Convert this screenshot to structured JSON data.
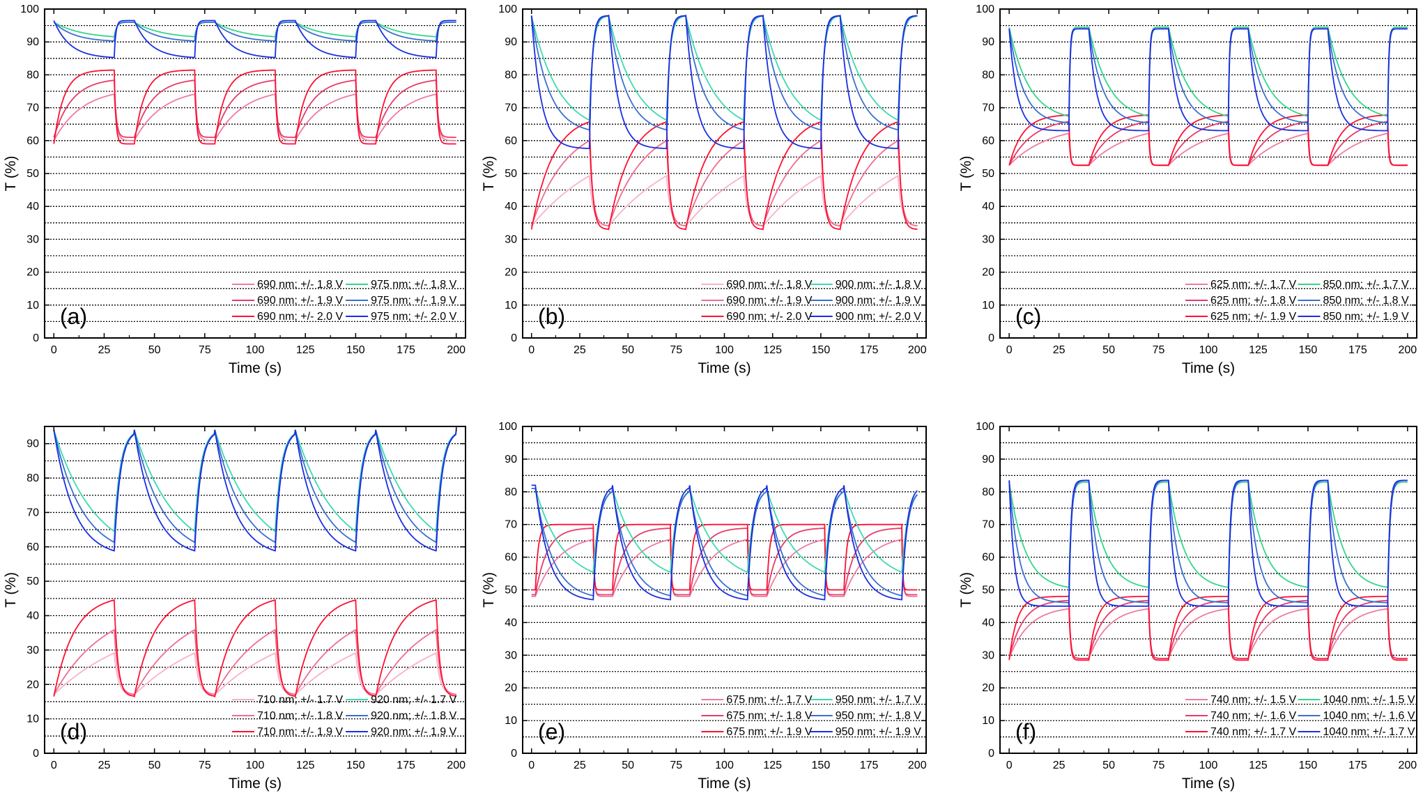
{
  "chart_data": [
    {
      "type": "line",
      "panel": "(a)",
      "xlabel": "Time (s)",
      "ylabel": "T (%)",
      "xlim": [
        0,
        200
      ],
      "ylim": [
        0,
        100
      ],
      "xticks": [
        0,
        25,
        50,
        75,
        100,
        125,
        150,
        175,
        200
      ],
      "yticks": [
        0,
        10,
        20,
        30,
        40,
        50,
        60,
        70,
        80,
        90,
        100
      ],
      "grid": "dotted horizontal every 5",
      "legend": "bottom-right",
      "cycle": {
        "period_s": 40,
        "dark_s": 30,
        "bleach_s": 10,
        "t_start": 0
      },
      "series": [
        {
          "name": "690 nm; +/- 1.8 V",
          "color": "#f07aa0",
          "bleached": 60,
          "colored": 76,
          "tau_col": 14,
          "tau_bl": 1.2
        },
        {
          "name": "690 nm; +/- 1.9 V",
          "color": "#e63b6a",
          "bleached": 61,
          "colored": 79,
          "tau_col": 9,
          "tau_bl": 1.0
        },
        {
          "name": "690 nm; +/- 2.0 V",
          "color": "#ff1030",
          "bleached": 59,
          "colored": 81.5,
          "tau_col": 5,
          "tau_bl": 0.8
        },
        {
          "name": "975 nm; +/- 1.8 V",
          "color": "#33d68a",
          "bleached": 96,
          "colored": 91,
          "tau_col": 14,
          "tau_bl": 1.2
        },
        {
          "name": "975 nm; +/- 1.9 V",
          "color": "#3a6fd0",
          "bleached": 96,
          "colored": 90,
          "tau_col": 10,
          "tau_bl": 1.0
        },
        {
          "name": "975 nm; +/- 2.0 V",
          "color": "#1a2ee0",
          "bleached": 96.5,
          "colored": 85,
          "tau_col": 8,
          "tau_bl": 0.8
        }
      ]
    },
    {
      "type": "line",
      "panel": "(b)",
      "xlabel": "Time (s)",
      "ylabel": "T (%)",
      "xlim": [
        0,
        200
      ],
      "ylim": [
        0,
        100
      ],
      "xticks": [
        0,
        25,
        50,
        75,
        100,
        125,
        150,
        175,
        200
      ],
      "yticks": [
        0,
        10,
        20,
        30,
        40,
        50,
        60,
        70,
        80,
        90,
        100
      ],
      "grid": "dotted horizontal every 5",
      "legend": "bottom-right",
      "cycle": {
        "period_s": 40,
        "dark_s": 30,
        "bleach_s": 10,
        "t_start": 0
      },
      "series": [
        {
          "name": "690 nm; +/- 1.8 V",
          "color": "#f7b2c8",
          "bleached": 34,
          "colored": 63,
          "tau_col": 40,
          "tau_bl": 2
        },
        {
          "name": "690 nm; +/- 1.9 V",
          "color": "#ee6c90",
          "bleached": 34,
          "colored": 66,
          "tau_col": 18,
          "tau_bl": 1.8
        },
        {
          "name": "690 nm; +/- 2.0 V",
          "color": "#ff1030",
          "bleached": 33,
          "colored": 68,
          "tau_col": 11,
          "tau_bl": 1.6
        },
        {
          "name": "900 nm; +/- 1.8 V",
          "color": "#3fd9b0",
          "bleached": 98,
          "colored": 62,
          "tau_col": 14,
          "tau_bl": 1.8
        },
        {
          "name": "900 nm; +/- 1.9 V",
          "color": "#3a6fd0",
          "bleached": 98,
          "colored": 62,
          "tau_col": 9,
          "tau_bl": 1.6
        },
        {
          "name": "900 nm; +/- 2.0 V",
          "color": "#1a2ee0",
          "bleached": 98,
          "colored": 57.5,
          "tau_col": 5,
          "tau_bl": 1.4
        }
      ]
    },
    {
      "type": "line",
      "panel": "(c)",
      "xlabel": "Time (s)",
      "ylabel": "T (%)",
      "xlim": [
        0,
        200
      ],
      "ylim": [
        0,
        100
      ],
      "xticks": [
        0,
        25,
        50,
        75,
        100,
        125,
        150,
        175,
        200
      ],
      "yticks": [
        0,
        10,
        20,
        30,
        40,
        50,
        60,
        70,
        80,
        90,
        100
      ],
      "grid": "dotted horizontal every 5",
      "legend": "bottom-right",
      "cycle": {
        "period_s": 40,
        "dark_s": 30,
        "bleach_s": 10,
        "t_start": 0
      },
      "series": [
        {
          "name": "625 nm; +/- 1.7 V",
          "color": "#f07aa0",
          "bleached": 52.5,
          "colored": 65,
          "tau_col": 20,
          "tau_bl": 0.6
        },
        {
          "name": "625 nm; +/- 1.8 V",
          "color": "#e63b6a",
          "bleached": 52.5,
          "colored": 67,
          "tau_col": 12,
          "tau_bl": 0.6
        },
        {
          "name": "625 nm; +/- 1.9 V",
          "color": "#ff1030",
          "bleached": 52.5,
          "colored": 68,
          "tau_col": 7,
          "tau_bl": 0.5
        },
        {
          "name": "850 nm; +/- 1.7 V",
          "color": "#33d68a",
          "bleached": 94.5,
          "colored": 66,
          "tau_col": 10,
          "tau_bl": 0.6
        },
        {
          "name": "850 nm; +/- 1.8 V",
          "color": "#3a6fd0",
          "bleached": 94,
          "colored": 65,
          "tau_col": 7,
          "tau_bl": 0.6
        },
        {
          "name": "850 nm; +/- 1.9 V",
          "color": "#1a2ee0",
          "bleached": 94,
          "colored": 63,
          "tau_col": 4,
          "tau_bl": 0.5
        }
      ]
    },
    {
      "type": "line",
      "panel": "(d)",
      "xlabel": "Time (s)",
      "ylabel": "T (%)",
      "xlim": [
        0,
        200
      ],
      "ylim": [
        0,
        95
      ],
      "xticks": [
        0,
        25,
        50,
        75,
        100,
        125,
        150,
        175,
        200
      ],
      "yticks": [
        0,
        10,
        20,
        30,
        40,
        50,
        60,
        70,
        80,
        90
      ],
      "grid": "dotted horizontal every 5",
      "legend": "bottom-right",
      "cycle": {
        "period_s": 40,
        "dark_s": 30,
        "bleach_s": 10,
        "t_start": 0
      },
      "series": [
        {
          "name": "710 nm; +/- 1.7 V",
          "color": "#f7b2c8",
          "bleached": 17,
          "colored": 40,
          "tau_col": 40,
          "tau_bl": 2
        },
        {
          "name": "710 nm; +/- 1.8 V",
          "color": "#ee6c90",
          "bleached": 17,
          "colored": 44,
          "tau_col": 25,
          "tau_bl": 2
        },
        {
          "name": "710 nm; +/- 1.9 V",
          "color": "#ff1030",
          "bleached": 16.5,
          "colored": 46,
          "tau_col": 10,
          "tau_bl": 1.8
        },
        {
          "name": "920 nm; +/- 1.7 V",
          "color": "#3fd9b0",
          "bleached": 94,
          "colored": 56,
          "tau_col": 20,
          "tau_bl": 3
        },
        {
          "name": "920 nm; +/- 1.8 V",
          "color": "#3a6fd0",
          "bleached": 94,
          "colored": 57,
          "tau_col": 14,
          "tau_bl": 3
        },
        {
          "name": "920 nm; +/- 1.9 V",
          "color": "#1a2ee0",
          "bleached": 94,
          "colored": 57,
          "tau_col": 10,
          "tau_bl": 3
        }
      ]
    },
    {
      "type": "line",
      "panel": "(e)",
      "xlabel": "Time (s)",
      "ylabel": "T (%)",
      "xlim": [
        0,
        200
      ],
      "ylim": [
        0,
        100
      ],
      "xticks": [
        0,
        25,
        50,
        75,
        100,
        125,
        150,
        175,
        200
      ],
      "yticks": [
        0,
        10,
        20,
        30,
        40,
        50,
        60,
        70,
        80,
        90,
        100
      ],
      "grid": "dotted horizontal every 5",
      "legend": "bottom-right",
      "cycle": {
        "period_s": 40,
        "dark_s": 30,
        "bleach_s": 10,
        "t_start": 2
      },
      "series": [
        {
          "name": "675 nm; +/- 1.7 V",
          "color": "#f07aa0",
          "bleached": 48,
          "colored": 67,
          "tau_col": 12,
          "tau_bl": 0.6
        },
        {
          "name": "675 nm; +/- 1.8 V",
          "color": "#e63b6a",
          "bleached": 48.5,
          "colored": 69,
          "tau_col": 6,
          "tau_bl": 0.5
        },
        {
          "name": "675 nm; +/- 1.9 V",
          "color": "#ff1030",
          "bleached": 50,
          "colored": 70,
          "tau_col": 1.5,
          "tau_bl": 0.4
        },
        {
          "name": "950 nm; +/- 1.7 V",
          "color": "#3fd9b0",
          "bleached": 81,
          "colored": 52,
          "tau_col": 14,
          "tau_bl": 3
        },
        {
          "name": "950 nm; +/- 1.8 V",
          "color": "#3a6fd0",
          "bleached": 81,
          "colored": 47,
          "tau_col": 9,
          "tau_bl": 2.8
        },
        {
          "name": "950 nm; +/- 1.9 V",
          "color": "#1a2ee0",
          "bleached": 82,
          "colored": 46.5,
          "tau_col": 7,
          "tau_bl": 2.6
        }
      ]
    },
    {
      "type": "line",
      "panel": "(f)",
      "xlabel": "Time (s)",
      "ylabel": "T (%)",
      "xlim": [
        0,
        200
      ],
      "ylim": [
        0,
        100
      ],
      "xticks": [
        0,
        25,
        50,
        75,
        100,
        125,
        150,
        175,
        200
      ],
      "yticks": [
        0,
        10,
        20,
        30,
        40,
        50,
        60,
        70,
        80,
        90,
        100
      ],
      "grid": "dotted horizontal every 5",
      "legend": "bottom-right",
      "cycle": {
        "period_s": 40,
        "dark_s": 30,
        "bleach_s": 10,
        "t_start": 0
      },
      "series": [
        {
          "name": "740 nm; +/- 1.5 V",
          "color": "#f07aa0",
          "bleached": 29,
          "colored": 45,
          "tau_col": 10,
          "tau_bl": 0.8
        },
        {
          "name": "740 nm; +/- 1.6 V",
          "color": "#e63b6a",
          "bleached": 29,
          "colored": 47,
          "tau_col": 7,
          "tau_bl": 0.8
        },
        {
          "name": "740 nm; +/- 1.7 V",
          "color": "#ff1030",
          "bleached": 28.5,
          "colored": 48,
          "tau_col": 4,
          "tau_bl": 0.7
        },
        {
          "name": "1040 nm; +/- 1.5 V",
          "color": "#33d68a",
          "bleached": 83,
          "colored": 50,
          "tau_col": 8,
          "tau_bl": 1.2
        },
        {
          "name": "1040 nm; +/- 1.6 V",
          "color": "#3a6fd0",
          "bleached": 83.5,
          "colored": 46,
          "tau_col": 5,
          "tau_bl": 1.2
        },
        {
          "name": "1040 nm; +/- 1.7 V",
          "color": "#1a2ee0",
          "bleached": 83.5,
          "colored": 45,
          "tau_col": 2.5,
          "tau_bl": 1.0
        }
      ]
    }
  ]
}
